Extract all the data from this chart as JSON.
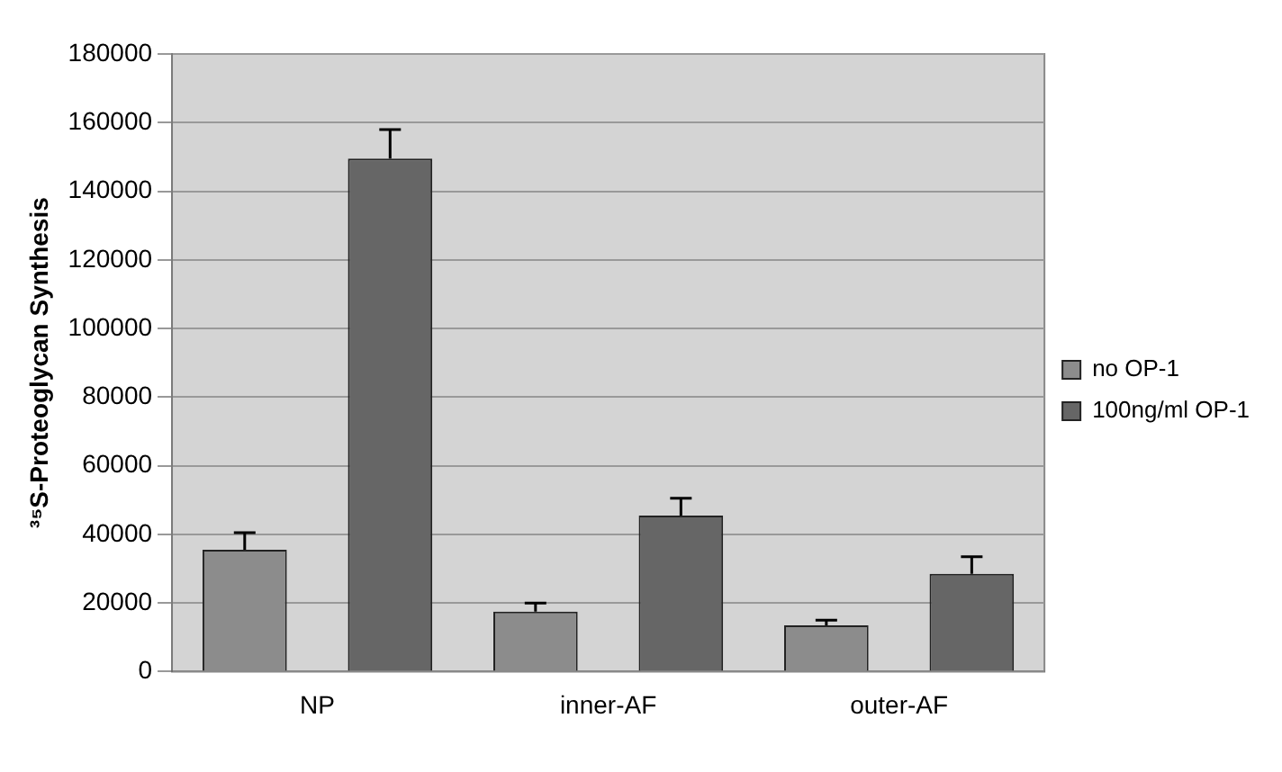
{
  "chart_data": {
    "type": "bar",
    "ylabel": "³⁵S-Proteoglycan Synthesis",
    "categories": [
      "NP",
      "inner-AF",
      "outer-AF"
    ],
    "series": [
      {
        "name": "no OP-1",
        "color": "#8c8c8c",
        "values": [
          35500,
          17500,
          13500
        ],
        "errors": [
          [
            35500,
            40500
          ],
          [
            17500,
            20000
          ],
          [
            13500,
            15000
          ]
        ]
      },
      {
        "name": "100ng/ml OP-1",
        "color": "#666666",
        "values": [
          149500,
          45500,
          28500
        ],
        "errors": [
          [
            149500,
            158000
          ],
          [
            45500,
            50500
          ],
          [
            28500,
            33500
          ]
        ]
      }
    ],
    "ylim": [
      0,
      180000
    ],
    "yticks": [
      0,
      20000,
      40000,
      60000,
      80000,
      100000,
      120000,
      140000,
      160000,
      180000
    ],
    "grid": "y",
    "legend": "right"
  }
}
